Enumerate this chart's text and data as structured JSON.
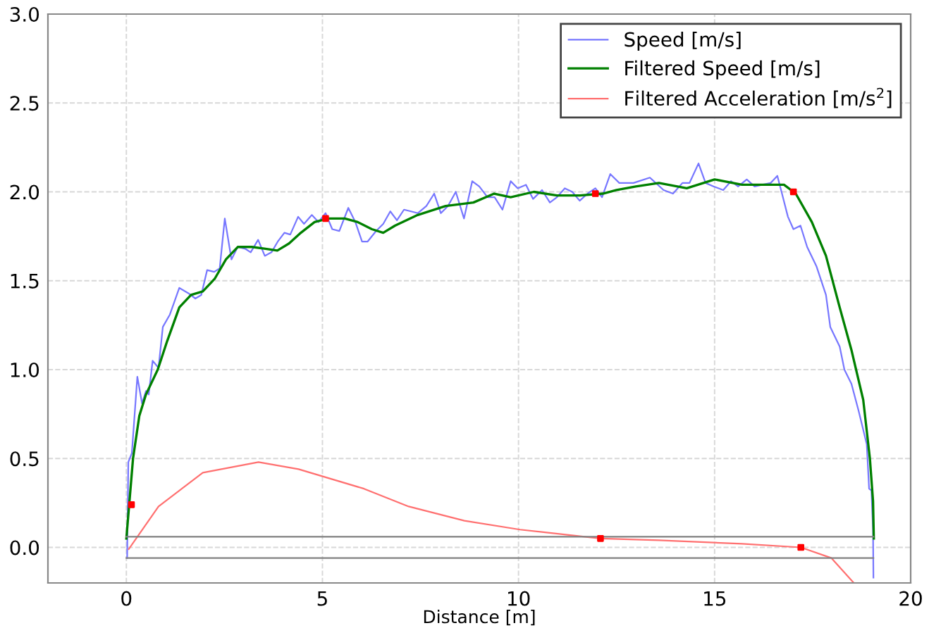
{
  "chart_data": {
    "type": "line",
    "xlabel": "Distance [m]",
    "xlim": [
      -2,
      20
    ],
    "ylim": [
      -0.2,
      3.0
    ],
    "xticks": [
      0,
      5,
      10,
      15,
      20
    ],
    "yticks": [
      {
        "value": 0,
        "label": "0.0"
      },
      {
        "value": 0.5,
        "label": "0.5"
      },
      {
        "value": 1,
        "label": "1.0"
      },
      {
        "value": 1.5,
        "label": "1.5"
      },
      {
        "value": 2,
        "label": "2.0"
      },
      {
        "value": 2.5,
        "label": "2.5"
      },
      {
        "value": 3,
        "label": "3.0"
      }
    ],
    "grid": true,
    "legend": "top right",
    "series": [
      {
        "name": "Speed [m/s]",
        "color": "#7777ff",
        "x": [
          0.02,
          0.05,
          0.14,
          0.28,
          0.4,
          0.5,
          0.57,
          0.67,
          0.82,
          0.93,
          1.11,
          1.35,
          1.58,
          1.76,
          1.91,
          2.06,
          2.24,
          2.38,
          2.51,
          2.68,
          2.84,
          3.03,
          3.17,
          3.36,
          3.53,
          3.7,
          3.86,
          4.03,
          4.18,
          4.38,
          4.53,
          4.73,
          4.9,
          5.08,
          5.25,
          5.43,
          5.66,
          5.84,
          6.01,
          6.15,
          6.37,
          6.55,
          6.73,
          6.9,
          7.08,
          7.26,
          7.43,
          7.65,
          7.85,
          8.02,
          8.2,
          8.4,
          8.61,
          8.82,
          9.0,
          9.21,
          9.39,
          9.59,
          9.8,
          9.98,
          10.19,
          10.37,
          10.6,
          10.8,
          10.98,
          11.18,
          11.37,
          11.56,
          11.76,
          11.96,
          12.13,
          12.34,
          12.57,
          12.93,
          13.35,
          13.7,
          13.94,
          14.18,
          14.36,
          14.59,
          14.77,
          14.98,
          15.22,
          15.42,
          15.6,
          15.82,
          16.02,
          16.22,
          16.43,
          16.6,
          16.73,
          16.87,
          17.01,
          17.19,
          17.36,
          17.6,
          17.84,
          17.95,
          18.19,
          18.31,
          18.49,
          18.67,
          18.88,
          18.94,
          19.0,
          19.04,
          19.05
        ],
        "values": [
          -0.06,
          0.48,
          0.53,
          0.96,
          0.81,
          0.88,
          0.86,
          1.05,
          1.01,
          1.24,
          1.31,
          1.46,
          1.43,
          1.4,
          1.42,
          1.56,
          1.55,
          1.57,
          1.85,
          1.62,
          1.69,
          1.68,
          1.66,
          1.73,
          1.64,
          1.66,
          1.72,
          1.77,
          1.76,
          1.86,
          1.82,
          1.87,
          1.83,
          1.88,
          1.79,
          1.78,
          1.91,
          1.83,
          1.72,
          1.72,
          1.78,
          1.82,
          1.89,
          1.84,
          1.9,
          1.89,
          1.88,
          1.92,
          1.99,
          1.88,
          1.92,
          2.0,
          1.85,
          2.06,
          2.03,
          1.97,
          1.97,
          1.9,
          2.06,
          2.02,
          2.04,
          1.96,
          2.01,
          1.94,
          1.97,
          2.02,
          2.0,
          1.95,
          1.99,
          2.02,
          1.97,
          2.1,
          2.05,
          2.05,
          2.08,
          2.01,
          1.99,
          2.05,
          2.05,
          2.16,
          2.05,
          2.03,
          2.01,
          2.06,
          2.03,
          2.07,
          2.03,
          2.04,
          2.05,
          2.09,
          1.98,
          1.86,
          1.79,
          1.81,
          1.69,
          1.58,
          1.42,
          1.24,
          1.13,
          1.0,
          0.92,
          0.77,
          0.58,
          0.33,
          0.32,
          0.1,
          -0.17
        ]
      },
      {
        "name": "Filtered Speed [m/s]",
        "color": "#008000",
        "x": [
          0.0,
          0.17,
          0.33,
          0.5,
          0.8,
          1.04,
          1.35,
          1.65,
          1.95,
          2.25,
          2.54,
          2.84,
          3.2,
          3.55,
          3.85,
          4.15,
          4.45,
          4.8,
          5.15,
          5.57,
          5.9,
          6.26,
          6.55,
          6.85,
          7.43,
          8.14,
          8.85,
          9.38,
          9.8,
          10.39,
          10.98,
          11.56,
          12.15,
          12.5,
          12.99,
          13.58,
          14.29,
          15.0,
          15.7,
          16.77,
          17.07,
          17.48,
          17.84,
          18.19,
          18.49,
          18.79,
          18.96,
          19.04,
          19.06
        ],
        "values": [
          0.05,
          0.5,
          0.74,
          0.86,
          1.0,
          1.16,
          1.35,
          1.42,
          1.44,
          1.51,
          1.62,
          1.69,
          1.69,
          1.68,
          1.67,
          1.71,
          1.77,
          1.83,
          1.85,
          1.85,
          1.83,
          1.79,
          1.77,
          1.81,
          1.87,
          1.92,
          1.94,
          1.99,
          1.97,
          2.0,
          1.98,
          1.98,
          1.99,
          2.01,
          2.03,
          2.05,
          2.02,
          2.07,
          2.04,
          2.04,
          1.99,
          1.83,
          1.64,
          1.35,
          1.11,
          0.83,
          0.5,
          0.26,
          0.05
        ]
      },
      {
        "name": "Filtered Acceleration [m/s$^{2}$]",
        "color": "#ff7070",
        "x": [
          0.06,
          0.82,
          1.95,
          3.37,
          4.39,
          6.06,
          7.2,
          8.62,
          10.04,
          12.09,
          13.58,
          15.7,
          17.2,
          17.98,
          18.55
        ],
        "values": [
          -0.01,
          0.23,
          0.42,
          0.48,
          0.44,
          0.33,
          0.23,
          0.15,
          0.1,
          0.05,
          0.04,
          0.02,
          0.0,
          -0.06,
          -0.2
        ]
      },
      {
        "color": "#808080",
        "x": [
          0,
          19.05
        ],
        "values": [
          0.06,
          0.06
        ]
      },
      {
        "color": "#808080",
        "x": [
          0,
          19.05
        ],
        "values": [
          -0.06,
          -0.06
        ]
      },
      {
        "type": "scatter",
        "color": "#ff0000",
        "marker": "square",
        "x": [
          0.13,
          5.08,
          11.96,
          17.01,
          12.09,
          17.2
        ],
        "values": [
          0.24,
          1.85,
          1.99,
          2.0,
          0.05,
          0.0
        ]
      }
    ]
  }
}
